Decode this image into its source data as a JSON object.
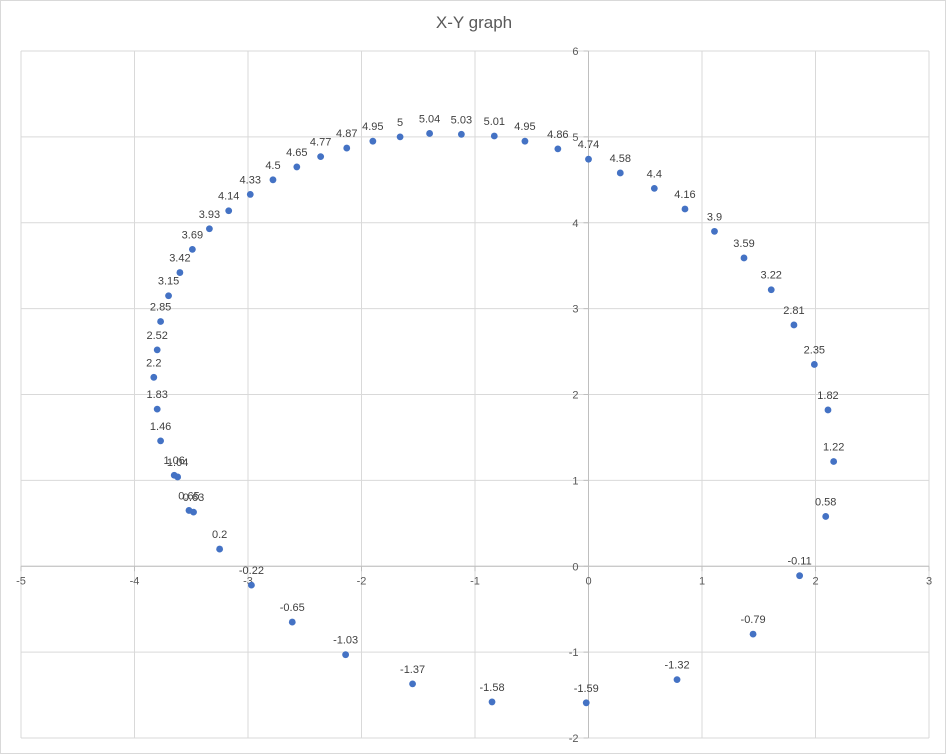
{
  "chart_data": {
    "type": "scatter",
    "title": "X-Y graph",
    "xlabel": "",
    "ylabel": "",
    "xlim": [
      -5,
      3
    ],
    "ylim": [
      -2,
      6
    ],
    "xticks": [
      -5,
      -4,
      -3,
      -2,
      -1,
      0,
      1,
      2,
      3
    ],
    "yticks": [
      -2,
      -1,
      0,
      1,
      2,
      3,
      4,
      5,
      6
    ],
    "grid": true,
    "legend": "none",
    "marker_color": "#4472C4",
    "data_labels": "y-value",
    "points": [
      {
        "x": -1.66,
        "y": 5
      },
      {
        "x": -1.4,
        "y": 5.04
      },
      {
        "x": -1.12,
        "y": 5.03
      },
      {
        "x": -0.83,
        "y": 5.01
      },
      {
        "x": -0.56,
        "y": 4.95
      },
      {
        "x": -0.27,
        "y": 4.86
      },
      {
        "x": 0.0,
        "y": 4.74
      },
      {
        "x": 0.28,
        "y": 4.58
      },
      {
        "x": 0.58,
        "y": 4.4
      },
      {
        "x": 0.85,
        "y": 4.16
      },
      {
        "x": 1.11,
        "y": 3.9
      },
      {
        "x": 1.37,
        "y": 3.59
      },
      {
        "x": 1.61,
        "y": 3.22
      },
      {
        "x": 1.81,
        "y": 2.81
      },
      {
        "x": 1.99,
        "y": 2.35
      },
      {
        "x": 2.11,
        "y": 1.82
      },
      {
        "x": 2.16,
        "y": 1.22
      },
      {
        "x": 2.09,
        "y": 0.58
      },
      {
        "x": 1.86,
        "y": -0.11
      },
      {
        "x": 1.45,
        "y": -0.79
      },
      {
        "x": 0.78,
        "y": -1.32
      },
      {
        "x": -0.02,
        "y": -1.59
      },
      {
        "x": -0.85,
        "y": -1.58
      },
      {
        "x": -1.55,
        "y": -1.37
      },
      {
        "x": -2.14,
        "y": -1.03
      },
      {
        "x": -2.61,
        "y": -0.65
      },
      {
        "x": -2.97,
        "y": -0.22
      },
      {
        "x": -3.25,
        "y": 0.2
      },
      {
        "x": -3.48,
        "y": 0.63
      },
      {
        "x": -3.52,
        "y": 0.65
      },
      {
        "x": -3.62,
        "y": 1.04
      },
      {
        "x": -3.65,
        "y": 1.06
      },
      {
        "x": -3.77,
        "y": 1.46
      },
      {
        "x": -3.8,
        "y": 1.83
      },
      {
        "x": -3.83,
        "y": 2.2
      },
      {
        "x": -3.8,
        "y": 2.52
      },
      {
        "x": -3.77,
        "y": 2.85
      },
      {
        "x": -3.7,
        "y": 3.15
      },
      {
        "x": -3.6,
        "y": 3.42
      },
      {
        "x": -3.49,
        "y": 3.69
      },
      {
        "x": -3.34,
        "y": 3.93
      },
      {
        "x": -3.17,
        "y": 4.14
      },
      {
        "x": -2.98,
        "y": 4.33
      },
      {
        "x": -2.78,
        "y": 4.5
      },
      {
        "x": -2.57,
        "y": 4.65
      },
      {
        "x": -2.36,
        "y": 4.77
      },
      {
        "x": -2.13,
        "y": 4.87
      },
      {
        "x": -1.9,
        "y": 4.95
      }
    ]
  }
}
